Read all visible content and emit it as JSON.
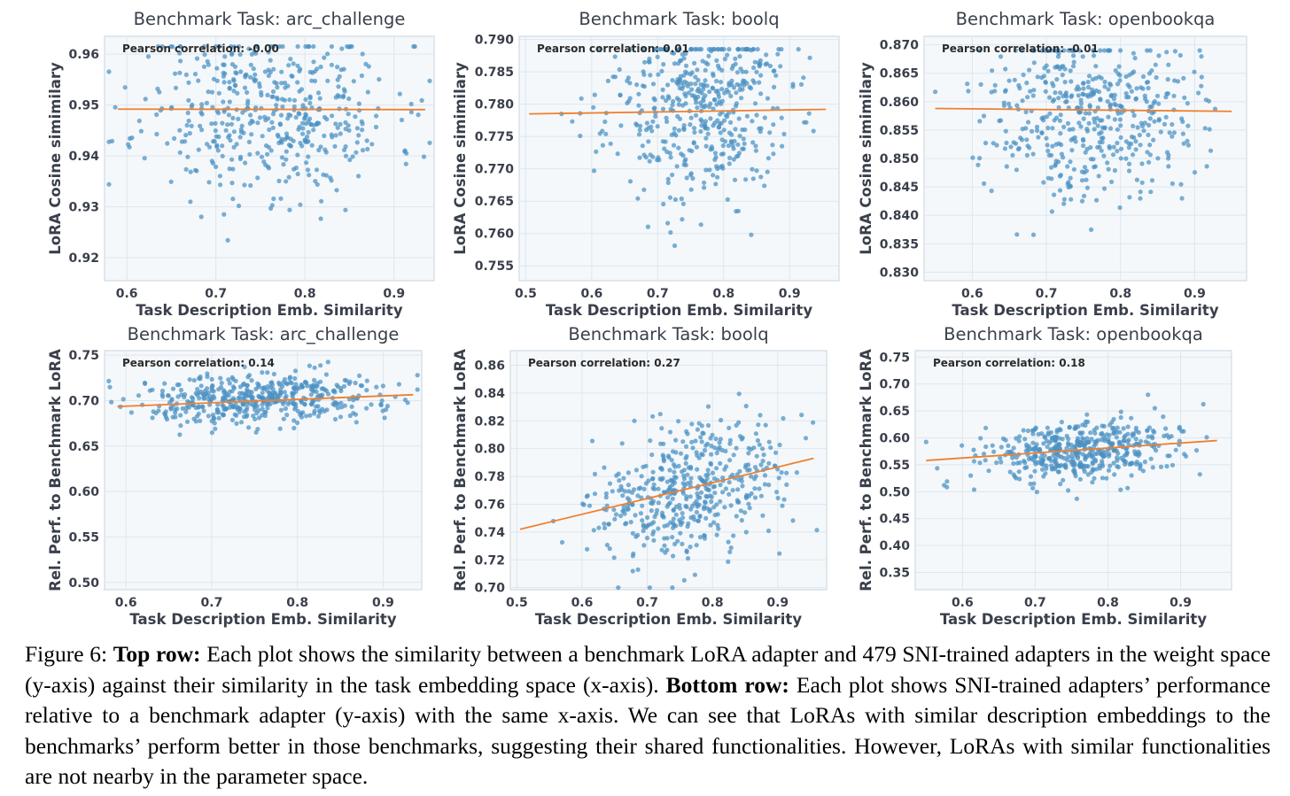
{
  "chart_data": [
    {
      "type": "scatter",
      "title": "Benchmark Task: arc_challenge",
      "xlabel": "Task Description Emb. Similarity",
      "ylabel": "LoRA Cosine simimilary",
      "annotation": "Pearson correlation: -0.00",
      "xlim": [
        0.575,
        0.945
      ],
      "ylim": [
        0.9155,
        0.9635
      ],
      "xticks": [
        "0.6",
        "0.7",
        "0.8",
        "0.9"
      ],
      "yticks": [
        "0.92",
        "0.93",
        "0.94",
        "0.95",
        "0.96"
      ],
      "fit": [
        [
          0.59,
          0.9492
        ],
        [
          0.935,
          0.9491
        ]
      ],
      "seed": 11,
      "n": 479,
      "xc": 0.76,
      "xs": 0.07,
      "xmin": 0.58,
      "xmax": 0.94,
      "yc": 0.949,
      "ys": 0.0085,
      "ymin": 0.917,
      "ymax": 0.9615,
      "slope": 0.0
    },
    {
      "type": "scatter",
      "title": "Benchmark Task: boolq",
      "xlabel": "Task Description Emb. Similarity",
      "ylabel": "LoRA Cosine simimilary",
      "annotation": "Pearson correlation: 0.01",
      "xlim": [
        0.49,
        0.975
      ],
      "ylim": [
        0.7527,
        0.7905
      ],
      "xticks": [
        "0.5",
        "0.6",
        "0.7",
        "0.8",
        "0.9"
      ],
      "yticks": [
        "0.755",
        "0.760",
        "0.765",
        "0.770",
        "0.775",
        "0.780",
        "0.785",
        "0.790"
      ],
      "fit": [
        [
          0.505,
          0.7785
        ],
        [
          0.955,
          0.7792
        ]
      ],
      "seed": 23,
      "n": 479,
      "xc": 0.76,
      "xs": 0.07,
      "xmin": 0.51,
      "xmax": 0.96,
      "yc": 0.7795,
      "ys": 0.0072,
      "ymin": 0.754,
      "ymax": 0.7885,
      "slope": 0.0015
    },
    {
      "type": "scatter",
      "title": "Benchmark Task: openbookqa",
      "xlabel": "Task Description Emb. Similarity",
      "ylabel": "LoRA Cosine simimilary",
      "annotation": "Pearson correlation: -0.01",
      "xlim": [
        0.535,
        0.97
      ],
      "ylim": [
        0.8285,
        0.8715
      ],
      "xticks": [
        "0.6",
        "0.7",
        "0.8",
        "0.9"
      ],
      "yticks": [
        "0.830",
        "0.835",
        "0.840",
        "0.845",
        "0.850",
        "0.855",
        "0.860",
        "0.865",
        "0.870"
      ],
      "fit": [
        [
          0.55,
          0.8588
        ],
        [
          0.95,
          0.8583
        ]
      ],
      "seed": 37,
      "n": 479,
      "xc": 0.76,
      "xs": 0.07,
      "xmin": 0.55,
      "xmax": 0.955,
      "yc": 0.8585,
      "ys": 0.0075,
      "ymin": 0.8305,
      "ymax": 0.869,
      "slope": -0.001
    },
    {
      "type": "scatter",
      "title": "Benchmark Task: arc_challenge",
      "xlabel": "Task Description Emb. Similarity",
      "ylabel": "Rel. Perf. to Benchmark LoRA",
      "annotation": "Pearson correlation: 0.14",
      "xlim": [
        0.575,
        0.945
      ],
      "ylim": [
        0.492,
        0.755
      ],
      "xticks": [
        "0.6",
        "0.7",
        "0.8",
        "0.9"
      ],
      "yticks": [
        "0.50",
        "0.55",
        "0.60",
        "0.65",
        "0.70",
        "0.75"
      ],
      "fit": [
        [
          0.59,
          0.6935
        ],
        [
          0.935,
          0.7065
        ]
      ],
      "seed": 51,
      "n": 479,
      "xc": 0.76,
      "xs": 0.07,
      "xmin": 0.58,
      "xmax": 0.94,
      "yc": 0.701,
      "ys": 0.014,
      "ymin": 0.65,
      "ymax": 0.747,
      "slope": 0.038
    },
    {
      "type": "scatter",
      "title": "Benchmark Task: boolq",
      "xlabel": "Task Description Emb. Similarity",
      "ylabel": "Rel. Perf. to Benchmark LoRA",
      "annotation": "Pearson correlation: 0.27",
      "xlim": [
        0.49,
        0.975
      ],
      "ylim": [
        0.6985,
        0.8705
      ],
      "xticks": [
        "0.5",
        "0.6",
        "0.7",
        "0.8",
        "0.9"
      ],
      "yticks": [
        "0.70",
        "0.72",
        "0.74",
        "0.76",
        "0.78",
        "0.80",
        "0.82",
        "0.84",
        "0.86"
      ],
      "fit": [
        [
          0.505,
          0.742
        ],
        [
          0.955,
          0.793
        ]
      ],
      "seed": 67,
      "n": 479,
      "xc": 0.76,
      "xs": 0.07,
      "xmin": 0.51,
      "xmax": 0.96,
      "yc": 0.768,
      "ys": 0.023,
      "ymin": 0.7,
      "ymax": 0.865,
      "slope": 0.113
    },
    {
      "type": "scatter",
      "title": "Benchmark Task: openbookqa",
      "xlabel": "Task Description Emb. Similarity",
      "ylabel": "Rel. Perf. to Benchmark LoRA",
      "annotation": "Pearson correlation: 0.18",
      "xlim": [
        0.535,
        0.97
      ],
      "ylim": [
        0.318,
        0.762
      ],
      "xticks": [
        "0.6",
        "0.7",
        "0.8",
        "0.9"
      ],
      "yticks": [
        "0.35",
        "0.40",
        "0.45",
        "0.50",
        "0.55",
        "0.60",
        "0.65",
        "0.70",
        "0.75"
      ],
      "fit": [
        [
          0.55,
          0.558
        ],
        [
          0.95,
          0.595
        ]
      ],
      "seed": 83,
      "n": 479,
      "xc": 0.76,
      "xs": 0.07,
      "xmin": 0.55,
      "xmax": 0.955,
      "yc": 0.576,
      "ys": 0.028,
      "ymin": 0.33,
      "ymax": 0.74,
      "slope": 0.093
    }
  ],
  "caption": {
    "label": "Figure 6:",
    "top_row_heading": "Top row:",
    "top_row_text": "Each plot shows the similarity between a benchmark LoRA adapter and 479 SNI-trained adapters in the weight space (y-axis) against their similarity in the task embedding space (x-axis).",
    "bottom_row_heading": "Bottom row:",
    "bottom_row_text": "Each plot shows SNI-trained adapters’ performance relative to a benchmark adapter (y-axis) with the same x-axis. We can see that LoRAs with similar description embeddings to the benchmarks’ perform better in those benchmarks, suggesting their shared functionalities. However, LoRAs with similar functionalities are not nearby in the parameter space."
  },
  "colors": {
    "point": "#4a90c2",
    "fit": "#f07f2e",
    "panel": "#f4f8fb",
    "grid": "#dfe6ec",
    "frame": "#c9d3dc"
  }
}
